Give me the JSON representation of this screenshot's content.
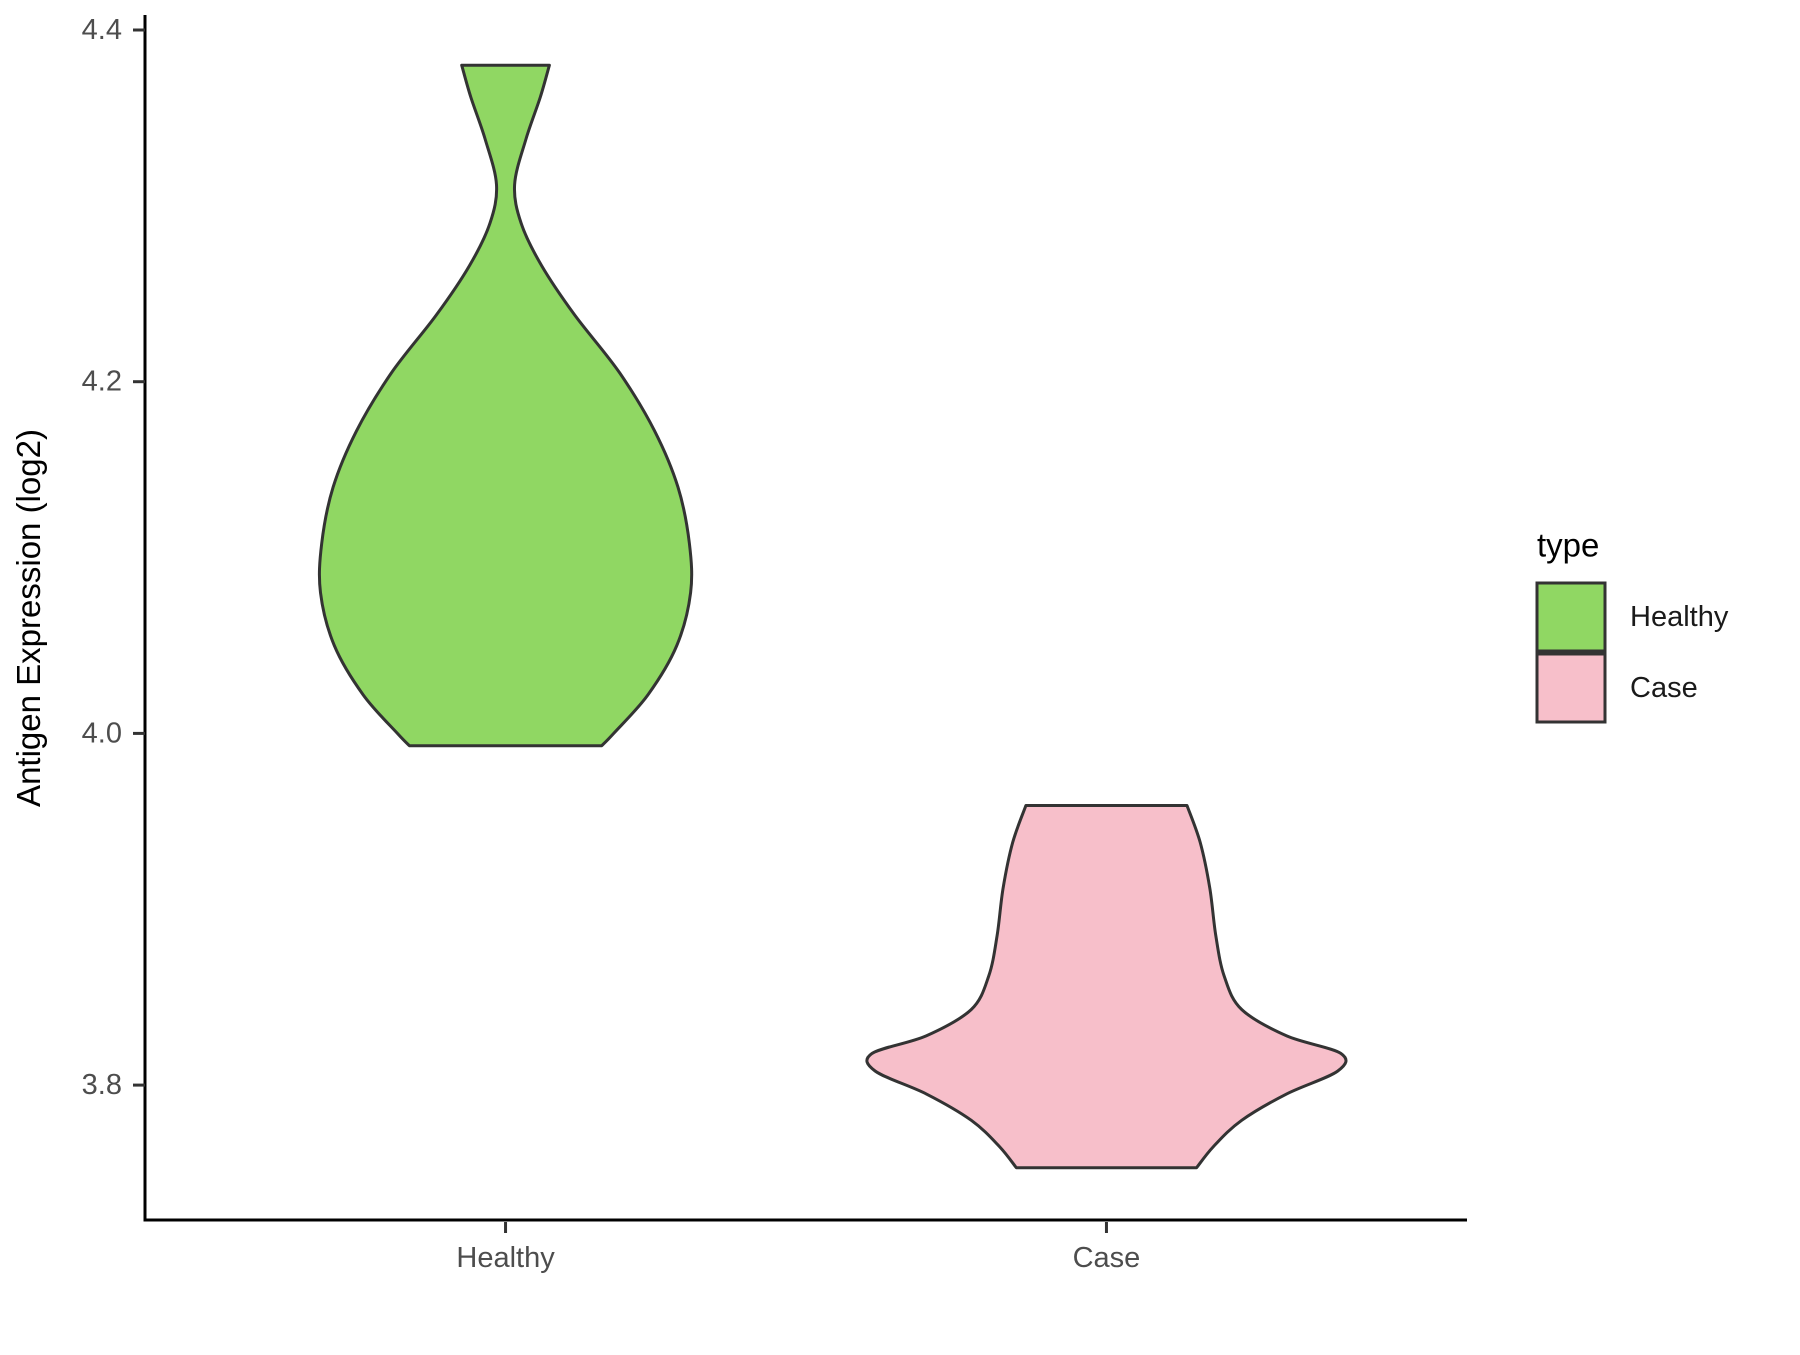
{
  "figure": {
    "y_axis": {
      "title": "Antigen Expression (log2)",
      "tick_labels": [
        "4.4",
        "4.2",
        "4.0",
        "3.8"
      ]
    },
    "x_axis": {
      "categories": [
        "Healthy",
        "Case"
      ]
    },
    "legend": {
      "title": "type",
      "entries": [
        {
          "label": "Healthy",
          "color": "#90d763"
        },
        {
          "label": "Case",
          "color": "#f7bfca"
        }
      ]
    }
  },
  "chart_data": {
    "type": "violin",
    "title": "",
    "xlabel": "",
    "ylabel": "Antigen Expression (log2)",
    "categories": [
      "Healthy",
      "Case"
    ],
    "y_ticks": [
      4.4,
      4.2,
      4.0,
      3.8
    ],
    "y_axis_range": [
      3.723,
      4.407
    ],
    "grid": false,
    "legend_position": "right",
    "legend_title": "type",
    "outline_color": "#333333",
    "series": [
      {
        "name": "Healthy",
        "fill": "#90d763",
        "y_min": 3.993,
        "y_max": 4.38,
        "density_peak_y": 4.09,
        "neck_y": 4.31,
        "profile": [
          [
            4.38,
            0.073
          ],
          [
            4.362,
            0.058
          ],
          [
            4.338,
            0.034
          ],
          [
            4.312,
            0.015
          ],
          [
            4.29,
            0.026
          ],
          [
            4.266,
            0.06
          ],
          [
            4.238,
            0.115
          ],
          [
            4.205,
            0.19
          ],
          [
            4.172,
            0.248
          ],
          [
            4.14,
            0.287
          ],
          [
            4.108,
            0.306
          ],
          [
            4.08,
            0.308
          ],
          [
            4.05,
            0.285
          ],
          [
            4.022,
            0.237
          ],
          [
            4.0,
            0.18
          ],
          [
            3.993,
            0.16
          ]
        ]
      },
      {
        "name": "Case",
        "fill": "#f7bfca",
        "y_min": 3.753,
        "y_max": 3.959,
        "density_peak_y": 3.82,
        "profile": [
          [
            3.959,
            0.134
          ],
          [
            3.938,
            0.156
          ],
          [
            3.912,
            0.172
          ],
          [
            3.885,
            0.182
          ],
          [
            3.862,
            0.196
          ],
          [
            3.843,
            0.225
          ],
          [
            3.828,
            0.3
          ],
          [
            3.818,
            0.39
          ],
          [
            3.808,
            0.385
          ],
          [
            3.795,
            0.3
          ],
          [
            3.78,
            0.225
          ],
          [
            3.765,
            0.178
          ],
          [
            3.753,
            0.15
          ]
        ]
      }
    ]
  }
}
